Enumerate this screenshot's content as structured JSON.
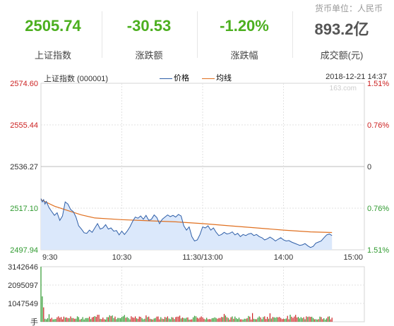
{
  "header": {
    "currency_unit": "货币单位：人民币",
    "stats": [
      {
        "value": "2505.74",
        "label": "上证指数",
        "color": "#4caf1f"
      },
      {
        "value": "-30.53",
        "label": "涨跌额",
        "color": "#4caf1f"
      },
      {
        "value": "-1.20%",
        "label": "涨跌幅",
        "color": "#4caf1f"
      },
      {
        "value": "893.2亿",
        "label": "成交额(元)",
        "color": "#555555"
      }
    ]
  },
  "chart_header": {
    "index_name": "上证指数 (000001)",
    "legend_price": "价格",
    "legend_avg": "均线",
    "timestamp": "2018-12-21 14:37",
    "watermark": "163.com"
  },
  "colors": {
    "price": "#2f5fa8",
    "avg": "#e07020",
    "fill": "#dbe8fb",
    "up": "#cc2222",
    "down": "#2f9a2f",
    "grid": "#d4d4d4"
  },
  "chart_data": [
    {
      "type": "line",
      "title": "",
      "y_ticks_left": [
        "2574.60",
        "2555.44",
        "2536.27",
        "2517.10",
        "2497.94"
      ],
      "y_ticks_right": [
        "1.51%",
        "0.76%",
        "0",
        "0.76%",
        "1.51%"
      ],
      "x_ticks": [
        "9:30",
        "10:30",
        "11:30/13:00",
        "14:00",
        "15:00"
      ],
      "ylim": [
        2497.94,
        2574.6
      ],
      "x_range_minutes": [
        0,
        240
      ],
      "series": [
        {
          "name": "价格",
          "points": [
            [
              0,
              2521.5
            ],
            [
              1,
              2520.0
            ],
            [
              2,
              2521.0
            ],
            [
              3,
              2519.0
            ],
            [
              4,
              2520.2
            ],
            [
              6,
              2517.3
            ],
            [
              8,
              2515.5
            ],
            [
              10,
              2513.8
            ],
            [
              12,
              2515.0
            ],
            [
              14,
              2511.5
            ],
            [
              16,
              2513.5
            ],
            [
              18,
              2520.0
            ],
            [
              20,
              2519.0
            ],
            [
              22,
              2516.5
            ],
            [
              24,
              2515.5
            ],
            [
              26,
              2513.0
            ],
            [
              28,
              2509.0
            ],
            [
              30,
              2507.5
            ],
            [
              32,
              2505.8
            ],
            [
              34,
              2505.5
            ],
            [
              36,
              2507.0
            ],
            [
              38,
              2506.0
            ],
            [
              40,
              2508.0
            ],
            [
              42,
              2510.0
            ],
            [
              44,
              2507.5
            ],
            [
              46,
              2508.0
            ],
            [
              48,
              2509.5
            ],
            [
              50,
              2507.5
            ],
            [
              52,
              2508.0
            ],
            [
              54,
              2506.5
            ],
            [
              56,
              2506.8
            ],
            [
              58,
              2504.8
            ],
            [
              60,
              2506.5
            ],
            [
              62,
              2505.0
            ],
            [
              64,
              2506.5
            ],
            [
              66,
              2508.5
            ],
            [
              68,
              2511.0
            ],
            [
              70,
              2513.0
            ],
            [
              72,
              2512.5
            ],
            [
              74,
              2513.5
            ],
            [
              76,
              2512.0
            ],
            [
              78,
              2513.8
            ],
            [
              80,
              2511.5
            ],
            [
              82,
              2512.0
            ],
            [
              84,
              2514.0
            ],
            [
              86,
              2512.8
            ],
            [
              88,
              2510.0
            ],
            [
              90,
              2512.0
            ],
            [
              92,
              2513.0
            ],
            [
              94,
              2514.0
            ],
            [
              96,
              2513.2
            ],
            [
              98,
              2513.8
            ],
            [
              100,
              2513.0
            ],
            [
              102,
              2514.2
            ],
            [
              104,
              2513.5
            ],
            [
              106,
              2509.0
            ],
            [
              108,
              2507.0
            ],
            [
              110,
              2508.5
            ],
            [
              112,
              2504.0
            ],
            [
              114,
              2502.0
            ],
            [
              116,
              2502.5
            ],
            [
              118,
              2505.0
            ],
            [
              120,
              2508.5
            ],
            [
              122,
              2508.0
            ],
            [
              124,
              2509.0
            ],
            [
              126,
              2507.0
            ],
            [
              128,
              2508.0
            ],
            [
              130,
              2506.0
            ],
            [
              132,
              2504.5
            ],
            [
              134,
              2505.0
            ],
            [
              136,
              2506.0
            ],
            [
              138,
              2505.2
            ],
            [
              140,
              2505.5
            ],
            [
              142,
              2506.2
            ],
            [
              144,
              2504.8
            ],
            [
              146,
              2505.5
            ],
            [
              148,
              2504.0
            ],
            [
              150,
              2505.0
            ],
            [
              152,
              2504.5
            ],
            [
              154,
              2505.2
            ],
            [
              156,
              2505.5
            ],
            [
              158,
              2504.5
            ],
            [
              160,
              2505.0
            ],
            [
              162,
              2504.0
            ],
            [
              164,
              2503.5
            ],
            [
              166,
              2502.5
            ],
            [
              168,
              2503.0
            ],
            [
              170,
              2503.8
            ],
            [
              172,
              2503.0
            ],
            [
              174,
              2502.0
            ],
            [
              176,
              2502.8
            ],
            [
              178,
              2503.5
            ],
            [
              180,
              2502.5
            ],
            [
              182,
              2502.0
            ],
            [
              184,
              2502.2
            ],
            [
              186,
              2501.5
            ],
            [
              188,
              2501.0
            ],
            [
              190,
              2500.5
            ],
            [
              192,
              2500.0
            ],
            [
              194,
              2500.2
            ],
            [
              196,
              2500.8
            ],
            [
              198,
              2499.8
            ],
            [
              200,
              2499.0
            ],
            [
              202,
              2499.5
            ],
            [
              204,
              2501.0
            ],
            [
              206,
              2501.5
            ],
            [
              208,
              2502.0
            ],
            [
              210,
              2503.5
            ],
            [
              212,
              2504.8
            ],
            [
              214,
              2505.2
            ],
            [
              216,
              2504.5
            ]
          ]
        },
        {
          "name": "均线",
          "points": [
            [
              0,
              2521.0
            ],
            [
              10,
              2518.0
            ],
            [
              20,
              2516.0
            ],
            [
              30,
              2514.0
            ],
            [
              40,
              2512.6
            ],
            [
              60,
              2511.8
            ],
            [
              80,
              2511.3
            ],
            [
              100,
              2510.8
            ],
            [
              120,
              2510.0
            ],
            [
              140,
              2509.0
            ],
            [
              160,
              2508.0
            ],
            [
              180,
              2507.0
            ],
            [
              200,
              2506.2
            ],
            [
              216,
              2505.9
            ]
          ]
        }
      ]
    },
    {
      "type": "bar",
      "title": "",
      "y_ticks": [
        "3142646",
        "2095097",
        "1047549",
        "手"
      ],
      "ylim": [
        0,
        3142646
      ],
      "x_range_minutes": [
        0,
        240
      ]
    }
  ]
}
